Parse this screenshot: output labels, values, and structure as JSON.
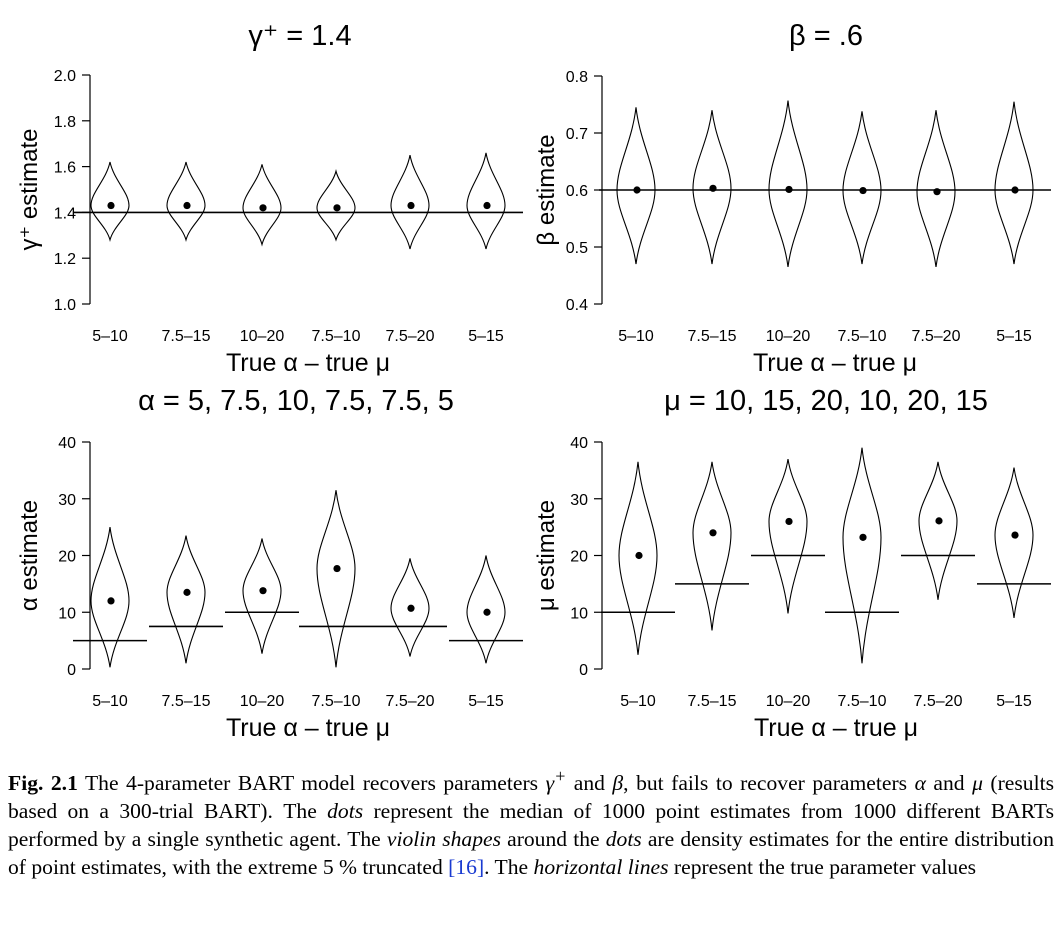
{
  "chart_data": [
    {
      "type": "violin",
      "title": "γ⁺ = 1.4",
      "xlabel": "True α – true μ",
      "ylabel": "γ⁺ estimate",
      "categories": [
        "5–10",
        "7.5–15",
        "10–20",
        "7.5–10",
        "7.5–20",
        "5–15"
      ],
      "ylim": [
        1.0,
        2.0
      ],
      "yticks": [
        1.0,
        1.2,
        1.4,
        1.6,
        1.8,
        2.0
      ],
      "ytick_labels": [
        "1.0",
        "1.2",
        "1.4",
        "1.6",
        "1.8",
        "2.0"
      ],
      "medians": [
        1.43,
        1.43,
        1.42,
        1.42,
        1.43,
        1.43
      ],
      "violin_min": [
        1.28,
        1.28,
        1.26,
        1.28,
        1.24,
        1.24
      ],
      "violin_max": [
        1.62,
        1.62,
        1.61,
        1.58,
        1.65,
        1.66
      ],
      "true_values": [
        1.4,
        1.4,
        1.4,
        1.4,
        1.4,
        1.4
      ]
    },
    {
      "type": "violin",
      "title": "β = .6",
      "xlabel": "True α – true μ",
      "ylabel": "β estimate",
      "categories": [
        "5–10",
        "7.5–15",
        "10–20",
        "7.5–10",
        "7.5–20",
        "5–15"
      ],
      "ylim": [
        0.4,
        0.8
      ],
      "yticks": [
        0.4,
        0.5,
        0.6,
        0.7,
        0.8
      ],
      "ytick_labels": [
        "0.4",
        "0.5",
        "0.6",
        "0.7",
        "0.8"
      ],
      "medians": [
        0.6,
        0.603,
        0.601,
        0.599,
        0.597,
        0.6
      ],
      "violin_min": [
        0.47,
        0.47,
        0.465,
        0.47,
        0.465,
        0.47
      ],
      "violin_max": [
        0.745,
        0.74,
        0.757,
        0.738,
        0.74,
        0.755
      ],
      "true_values": [
        0.6,
        0.6,
        0.6,
        0.6,
        0.6,
        0.6
      ]
    },
    {
      "type": "violin",
      "title": "α = 5, 7.5, 10, 7.5, 7.5, 5",
      "xlabel": "True α – true μ",
      "ylabel": "α estimate",
      "categories": [
        "5–10",
        "7.5–15",
        "10–20",
        "7.5–10",
        "7.5–20",
        "5–15"
      ],
      "ylim": [
        0,
        40
      ],
      "yticks": [
        0,
        10,
        20,
        30,
        40
      ],
      "ytick_labels": [
        "0",
        "10",
        "20",
        "30",
        "40"
      ],
      "medians": [
        12,
        13.5,
        13.8,
        17.7,
        10.7,
        10
      ],
      "violin_min": [
        0.3,
        1,
        2.7,
        0.3,
        2.2,
        1
      ],
      "violin_max": [
        25,
        23.5,
        23,
        31.5,
        19.5,
        20
      ],
      "true_values": [
        5,
        7.5,
        10,
        7.5,
        7.5,
        5
      ]
    },
    {
      "type": "violin",
      "title": "μ = 10, 15, 20, 10, 20, 15",
      "xlabel": "True α – true μ",
      "ylabel": "μ estimate",
      "categories": [
        "5–10",
        "7.5–15",
        "10–20",
        "7.5–10",
        "7.5–20",
        "5–15"
      ],
      "ylim": [
        0,
        40
      ],
      "yticks": [
        0,
        10,
        20,
        30,
        40
      ],
      "ytick_labels": [
        "0",
        "10",
        "20",
        "30",
        "40"
      ],
      "medians": [
        20,
        24,
        26,
        23.2,
        26.1,
        23.6
      ],
      "violin_min": [
        2.5,
        6.8,
        9.8,
        1,
        12.2,
        9
      ],
      "violin_max": [
        36.5,
        36.5,
        37,
        39,
        36.5,
        35.5
      ],
      "true_values": [
        10,
        15,
        20,
        10,
        20,
        15
      ]
    }
  ],
  "caption": {
    "label": "Fig. 2.1",
    "part1": " The 4-parameter BART model recovers parameters ",
    "gamma": "γ",
    "gamma_sup": "+",
    "part2": " and ",
    "beta": "β",
    "part3": ", but fails to recover parameters ",
    "alpha": "α",
    "part4": " and ",
    "mu": "μ",
    "part5": " (results based on a 300-trial BART). The ",
    "dots": "dots",
    "part6": " represent the median of 1000 point estimates from 1000 different BARTs performed by a single synthetic agent. The ",
    "violins": "violin shapes",
    "part7": " around the ",
    "dots2": "dots",
    "part8": " are density estimates for the entire distribution of point estimates, with the extreme 5 % truncated ",
    "ref": "[16]",
    "part9": ". The ",
    "hlines": "horizontal lines",
    "part10": " represent the true parameter values"
  }
}
